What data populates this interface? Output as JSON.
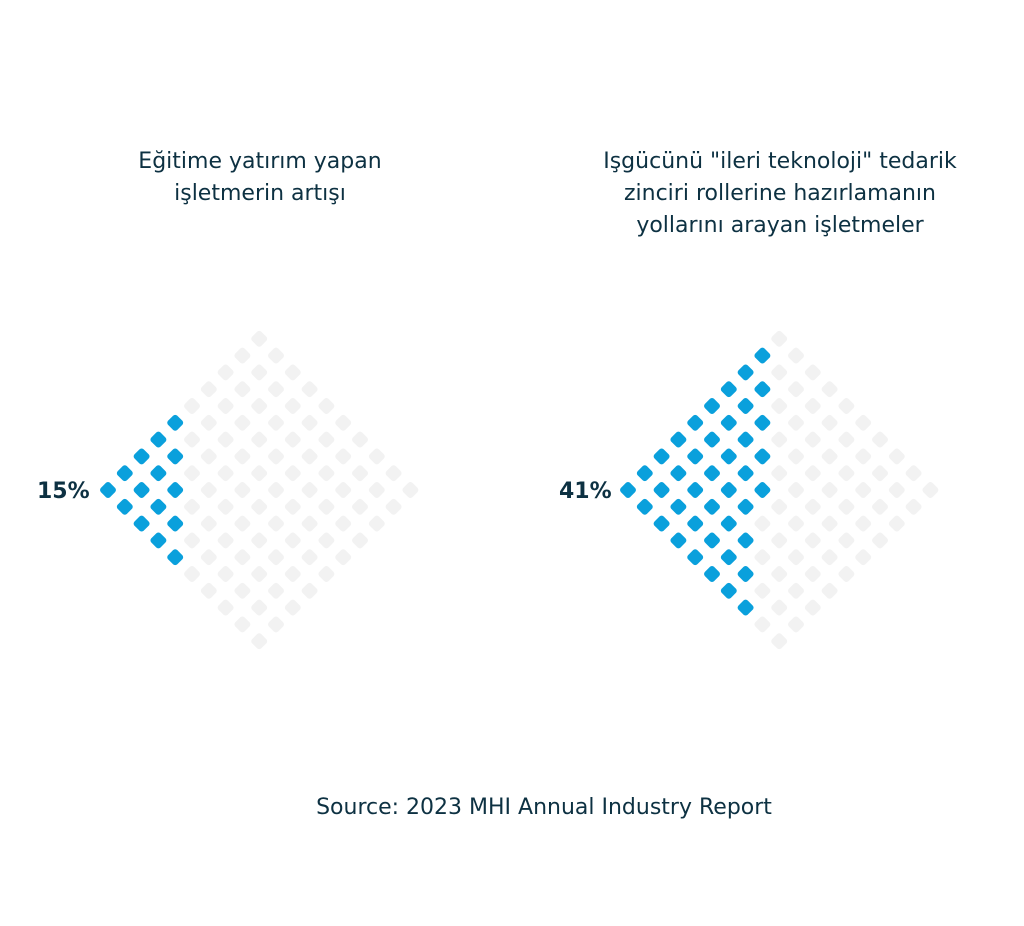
{
  "chart_data": [
    {
      "type": "waffle-diamond",
      "title": "Eğitime yatırım yapan\nişletmerin artışı",
      "value_label": "15%",
      "value": 15,
      "total_cells": 100,
      "filled_color": "#0aa0dc",
      "empty_color": "#f2f2f2"
    },
    {
      "type": "waffle-diamond",
      "title": "Işgücünü \"ileri teknoloji\" tedarik\nzinciri rollerine hazırlamanın\nyollarını arayan işletmeler",
      "value_label": "41%",
      "value": 41,
      "total_cells": 100,
      "filled_color": "#0aa0dc",
      "empty_color": "#f2f2f2"
    }
  ],
  "source": "Source: 2023 MHI Annual Industry Report"
}
